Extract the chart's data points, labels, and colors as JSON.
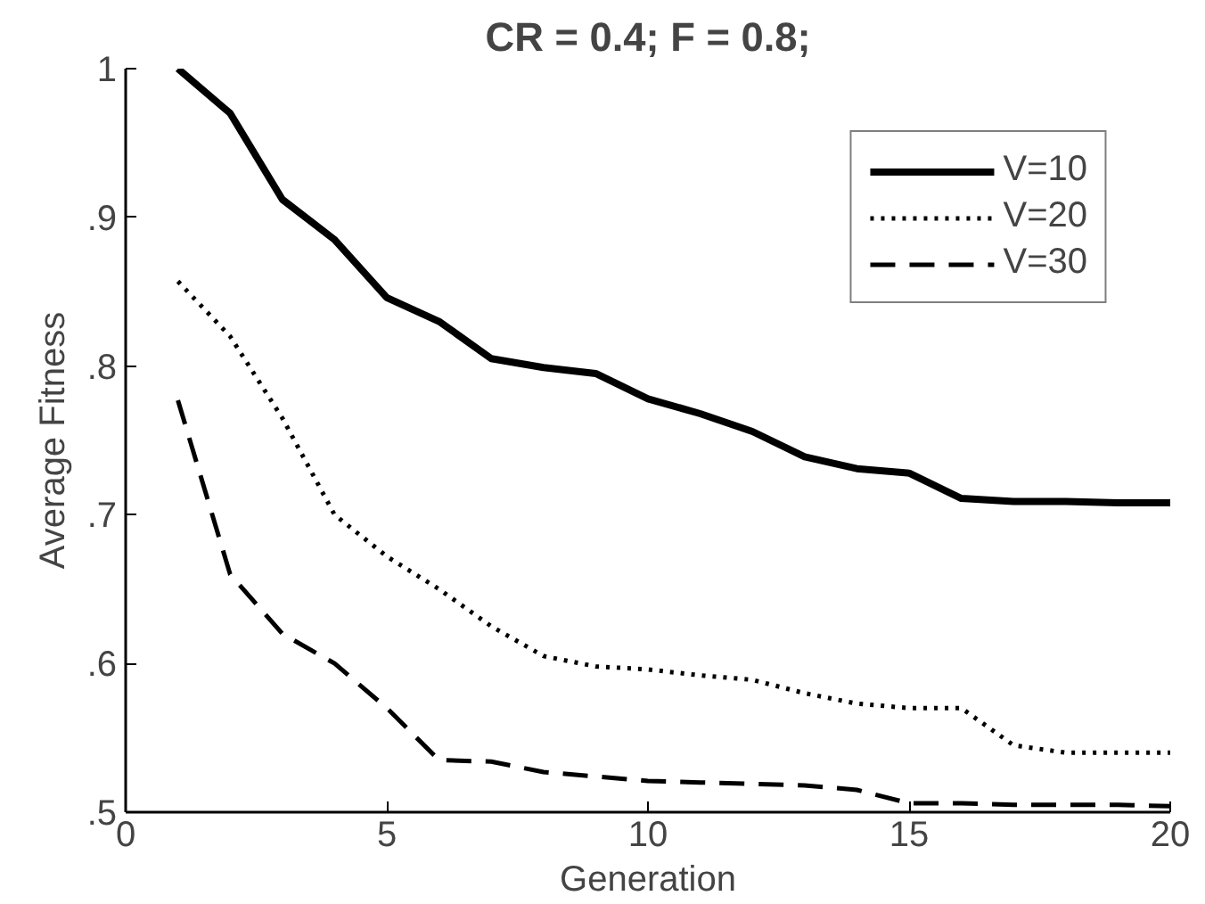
{
  "chart_data": {
    "type": "line",
    "title": "CR = 0.4; F = 0.8;",
    "xlabel": "Generation",
    "ylabel": "Average Fitness",
    "x": [
      1,
      2,
      3,
      4,
      5,
      6,
      7,
      8,
      9,
      10,
      11,
      12,
      13,
      14,
      15,
      16,
      17,
      18,
      19,
      20
    ],
    "series": [
      {
        "name": "V=10",
        "color": "#000000",
        "line_style": "solid",
        "values": [
          1.0,
          0.97,
          0.912,
          0.885,
          0.846,
          0.83,
          0.805,
          0.799,
          0.795,
          0.778,
          0.768,
          0.756,
          0.739,
          0.731,
          0.728,
          0.711,
          0.709,
          0.709,
          0.708,
          0.708
        ]
      },
      {
        "name": "V=20",
        "color": "#000000",
        "line_style": "dotted",
        "values": [
          0.857,
          0.82,
          0.765,
          0.7,
          0.672,
          0.65,
          0.625,
          0.605,
          0.598,
          0.596,
          0.592,
          0.589,
          0.58,
          0.573,
          0.57,
          0.57,
          0.545,
          0.54,
          0.54,
          0.54
        ]
      },
      {
        "name": "V=30",
        "color": "#000000",
        "line_style": "dashed",
        "values": [
          0.777,
          0.66,
          0.62,
          0.6,
          0.57,
          0.535,
          0.534,
          0.527,
          0.524,
          0.521,
          0.52,
          0.519,
          0.518,
          0.515,
          0.506,
          0.506,
          0.505,
          0.505,
          0.505,
          0.504
        ]
      }
    ],
    "xlim": [
      0,
      20
    ],
    "ylim": [
      0.5,
      1.0
    ],
    "xticks": [
      0,
      5,
      10,
      15,
      20
    ],
    "yticks": [
      {
        "value": 0.5,
        "label": ".5"
      },
      {
        "value": 0.6,
        "label": ".6"
      },
      {
        "value": 0.7,
        "label": ".7"
      },
      {
        "value": 0.8,
        "label": ".8"
      },
      {
        "value": 0.9,
        "label": ".9"
      },
      1
    ],
    "grid": false,
    "legend": "top right",
    "marker": "none"
  }
}
